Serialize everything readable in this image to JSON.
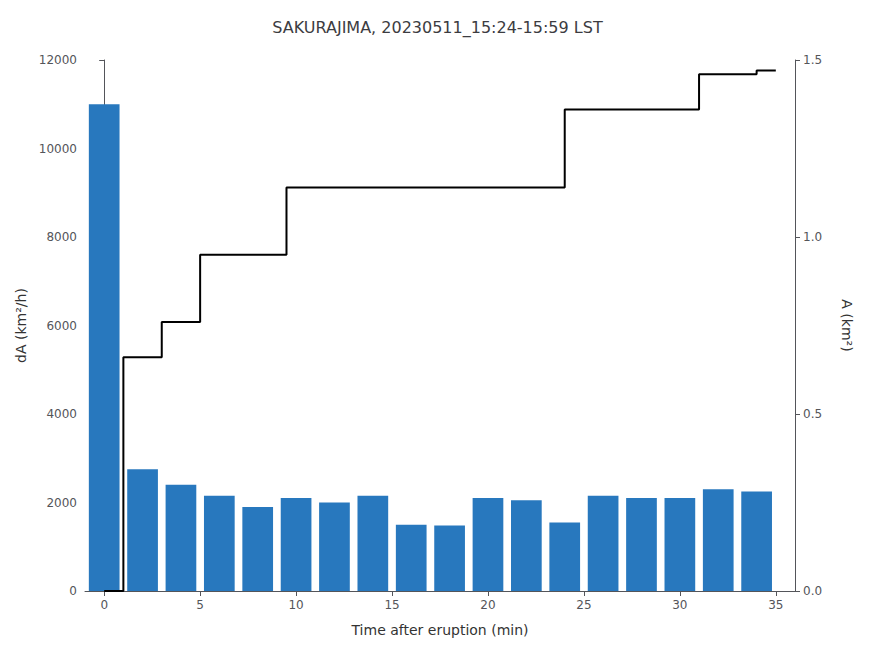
{
  "chart_data": {
    "type": "bar",
    "title": "SAKURAJIMA, 20230511_15:24-15:59 LST",
    "xlabel": "Time after eruption (min)",
    "ylabel": "dA (km²/h)",
    "y2label": "A (km²)",
    "xlim": [
      -1,
      36
    ],
    "xticks": [
      0,
      5,
      10,
      15,
      20,
      25,
      30,
      35
    ],
    "ylim": [
      0,
      12000
    ],
    "yticks": [
      0,
      2000,
      4000,
      6000,
      8000,
      10000,
      12000
    ],
    "y2lim": [
      0,
      1.5
    ],
    "y2ticks": [
      {
        "value": 0,
        "label": "0.0"
      },
      0.5,
      {
        "value": 1.0,
        "label": "1.0"
      },
      1.5
    ],
    "grid": false,
    "series": [
      {
        "type": "bar",
        "color": "#2878BE",
        "x": [
          0,
          2,
          4,
          6,
          8,
          10,
          12,
          14,
          16,
          18,
          20,
          22,
          24,
          26,
          28,
          30,
          32,
          34
        ],
        "values": [
          11000,
          2750,
          2400,
          2150,
          1900,
          2100,
          2000,
          2150,
          1500,
          1480,
          2100,
          2050,
          1550,
          2150,
          2100,
          2100,
          2300,
          2250
        ]
      },
      {
        "type": "line",
        "color": "#000000",
        "axis": "y2",
        "x": [
          0,
          1,
          1,
          3,
          3,
          5,
          5,
          7.5,
          7.5,
          9.5,
          9.5,
          22,
          22,
          24,
          24,
          31,
          31,
          34,
          34,
          35
        ],
        "values": [
          0,
          0,
          0.66,
          0.66,
          0.76,
          0.76,
          0.95,
          0.95,
          0.95,
          0.95,
          1.14,
          1.14,
          1.14,
          1.14,
          1.36,
          1.36,
          1.46,
          1.46,
          1.47,
          1.47
        ]
      }
    ]
  }
}
